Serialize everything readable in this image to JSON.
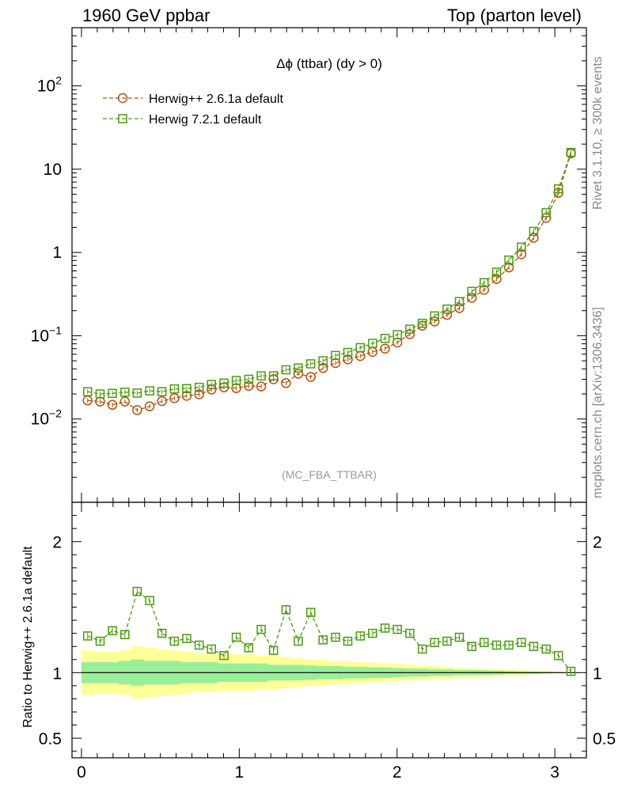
{
  "header": {
    "left": "1960 GeV ppbar",
    "right": "Top (parton level)"
  },
  "side_labels": {
    "rivet": "Rivet 3.1.10, ≥ 300k events",
    "mcplots": "mcplots.cern.ch [arXiv:1306.3436]"
  },
  "chart_data": [
    {
      "type": "line",
      "title": "Δϕ (ttbar) (dy > 0)",
      "watermark": "(MC_FBA_TTBAR)",
      "yscale": "log",
      "ylim": [
        0.001,
        500
      ],
      "xlim": [
        -0.06,
        3.2
      ],
      "xticks": [
        0,
        1,
        2,
        3
      ],
      "yticks": [
        {
          "value": 0.01,
          "base": "10",
          "exp": "−2"
        },
        {
          "value": 0.1,
          "base": "10",
          "exp": "−1"
        },
        {
          "value": 1,
          "base": "1",
          "exp": ""
        },
        {
          "value": 10,
          "base": "10",
          "exp": ""
        },
        {
          "value": 100,
          "base": "10",
          "exp": "2"
        }
      ],
      "legend_position": "top-left",
      "x": [
        0.039,
        0.118,
        0.196,
        0.275,
        0.353,
        0.432,
        0.51,
        0.589,
        0.667,
        0.746,
        0.824,
        0.903,
        0.981,
        1.06,
        1.139,
        1.217,
        1.296,
        1.374,
        1.453,
        1.531,
        1.61,
        1.688,
        1.767,
        1.845,
        1.924,
        2.002,
        2.081,
        2.16,
        2.238,
        2.317,
        2.395,
        2.474,
        2.552,
        2.631,
        2.709,
        2.788,
        2.866,
        2.945,
        3.023,
        3.102
      ],
      "series": [
        {
          "name": "Herwig++ 2.6.1a default",
          "color": "#b5520c",
          "marker": "circle",
          "values": [
            0.0167,
            0.0162,
            0.0148,
            0.0162,
            0.0128,
            0.0142,
            0.0164,
            0.0178,
            0.019,
            0.0198,
            0.0226,
            0.024,
            0.0235,
            0.025,
            0.0246,
            0.03,
            0.027,
            0.035,
            0.032,
            0.041,
            0.047,
            0.052,
            0.057,
            0.064,
            0.07,
            0.083,
            0.104,
            0.132,
            0.148,
            0.178,
            0.215,
            0.285,
            0.355,
            0.48,
            0.66,
            0.95,
            1.5,
            2.6,
            5.2,
            15.5
          ]
        },
        {
          "name": "Herwig 7.2.1 default",
          "color": "#4a9a10",
          "marker": "square",
          "values": [
            0.0213,
            0.02,
            0.0203,
            0.021,
            0.0205,
            0.0218,
            0.0213,
            0.023,
            0.0232,
            0.024,
            0.026,
            0.027,
            0.029,
            0.03,
            0.033,
            0.033,
            0.039,
            0.041,
            0.046,
            0.05,
            0.058,
            0.063,
            0.072,
            0.081,
            0.093,
            0.103,
            0.12,
            0.141,
            0.173,
            0.209,
            0.257,
            0.341,
            0.434,
            0.58,
            0.81,
            1.16,
            1.79,
            3.0,
            5.8,
            15.9
          ]
        }
      ]
    },
    {
      "type": "line",
      "ylabel": "Ratio to Herwig++ 2.6.1a default",
      "ylim": [
        0.35,
        2.3
      ],
      "xlim": [
        -0.06,
        3.2
      ],
      "xticks": [
        0,
        1,
        2,
        3
      ],
      "yticks": [
        0.5,
        1,
        2
      ],
      "reference": 1,
      "band_yellow": [
        0.17,
        0.16,
        0.16,
        0.17,
        0.2,
        0.19,
        0.18,
        0.17,
        0.16,
        0.15,
        0.15,
        0.14,
        0.14,
        0.14,
        0.13,
        0.13,
        0.12,
        0.11,
        0.1,
        0.1,
        0.09,
        0.085,
        0.08,
        0.075,
        0.07,
        0.065,
        0.06,
        0.055,
        0.05,
        0.045,
        0.04,
        0.035,
        0.03,
        0.03,
        0.025,
        0.02,
        0.015,
        0.012,
        0.008,
        0.005
      ],
      "band_green": [
        0.08,
        0.08,
        0.08,
        0.09,
        0.1,
        0.09,
        0.09,
        0.09,
        0.08,
        0.08,
        0.08,
        0.07,
        0.07,
        0.07,
        0.07,
        0.06,
        0.06,
        0.06,
        0.055,
        0.05,
        0.05,
        0.045,
        0.045,
        0.04,
        0.04,
        0.035,
        0.03,
        0.03,
        0.025,
        0.025,
        0.02,
        0.02,
        0.018,
        0.015,
        0.012,
        0.01,
        0.008,
        0.006,
        0.004,
        0.003
      ],
      "series": [
        {
          "name": "Herwig 7.2.1 default",
          "color": "#4a9a10",
          "marker": "square",
          "values": [
            1.28,
            1.24,
            1.32,
            1.29,
            1.62,
            1.55,
            1.3,
            1.24,
            1.26,
            1.21,
            1.18,
            1.13,
            1.27,
            1.19,
            1.33,
            1.17,
            1.48,
            1.24,
            1.46,
            1.25,
            1.27,
            1.24,
            1.28,
            1.3,
            1.34,
            1.33,
            1.3,
            1.18,
            1.23,
            1.24,
            1.27,
            1.2,
            1.23,
            1.21,
            1.21,
            1.23,
            1.2,
            1.18,
            1.13,
            1.01
          ]
        }
      ]
    }
  ]
}
